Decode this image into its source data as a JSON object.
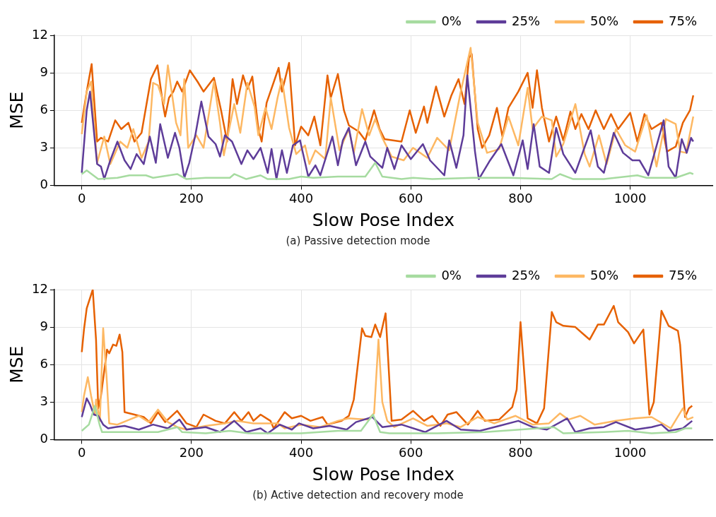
{
  "chart_data": [
    {
      "type": "line",
      "xlabel": "Slow Pose Index",
      "ylabel": "MSE",
      "annotations": [
        "(a) Passive detection mode"
      ],
      "xlim": [
        -50,
        1150
      ],
      "xticks": [
        0,
        200,
        400,
        600,
        800,
        1000
      ],
      "ylim": [
        0,
        12
      ],
      "yticks": [
        0,
        3,
        6,
        9,
        12
      ],
      "grid": true,
      "legend": "top right",
      "marker": "none",
      "line_style": "solid",
      "series": [
        {
          "name": "0%",
          "color": "#a6dba0",
          "x": [
            0,
            9,
            30,
            65,
            87,
            117,
            130,
            174,
            191,
            226,
            270,
            278,
            300,
            326,
            339,
            378,
            400,
            422,
            467,
            517,
            535,
            548,
            583,
            604,
            639,
            713,
            778,
            857,
            872,
            896,
            952,
            1013,
            1030,
            1083,
            1109,
            1115
          ],
          "values": [
            0.9,
            1.2,
            0.5,
            0.6,
            0.8,
            0.8,
            0.6,
            0.9,
            0.5,
            0.6,
            0.6,
            0.9,
            0.5,
            0.8,
            0.5,
            0.5,
            0.7,
            0.6,
            0.7,
            0.7,
            1.8,
            0.7,
            0.5,
            0.6,
            0.5,
            0.6,
            0.6,
            0.5,
            0.9,
            0.5,
            0.5,
            0.8,
            0.6,
            0.6,
            1.0,
            0.9
          ]
        },
        {
          "name": "25%",
          "color": "#5e3c99",
          "x": [
            0,
            9,
            15,
            28,
            35,
            41,
            52,
            65,
            78,
            89,
            100,
            113,
            124,
            135,
            143,
            157,
            170,
            178,
            187,
            196,
            207,
            218,
            231,
            244,
            252,
            261,
            274,
            291,
            302,
            313,
            326,
            339,
            346,
            355,
            365,
            374,
            385,
            398,
            413,
            426,
            435,
            457,
            467,
            476,
            487,
            500,
            517,
            526,
            548,
            557,
            570,
            583,
            600,
            622,
            635,
            661,
            670,
            683,
            696,
            703,
            717,
            724,
            743,
            765,
            787,
            804,
            813,
            824,
            835,
            852,
            865,
            878,
            900,
            928,
            941,
            952,
            970,
            987,
            1004,
            1017,
            1033,
            1061,
            1070,
            1083,
            1094,
            1103,
            1111,
            1115
          ],
          "values": [
            1.0,
            6.0,
            7.5,
            1.7,
            1.5,
            0.5,
            2.0,
            3.5,
            2.0,
            1.3,
            2.5,
            1.7,
            3.9,
            1.8,
            4.9,
            2.2,
            4.2,
            3.0,
            0.6,
            1.8,
            4.0,
            6.7,
            3.9,
            3.3,
            2.3,
            4.0,
            3.5,
            1.7,
            2.8,
            2.1,
            3.0,
            1.0,
            2.9,
            0.5,
            2.8,
            1.0,
            3.2,
            3.6,
            0.7,
            1.6,
            0.8,
            3.9,
            1.6,
            3.6,
            4.6,
            1.6,
            3.5,
            2.3,
            1.4,
            3.0,
            1.3,
            3.2,
            2.1,
            3.3,
            2.0,
            0.8,
            3.6,
            1.4,
            4.0,
            8.8,
            2.7,
            0.5,
            1.9,
            3.3,
            0.8,
            3.6,
            1.3,
            4.9,
            1.5,
            1.0,
            4.6,
            2.5,
            1.0,
            4.4,
            1.5,
            1.0,
            4.2,
            2.6,
            2.0,
            2.0,
            0.8,
            5.2,
            1.5,
            0.6,
            3.7,
            2.6,
            3.8,
            3.5
          ]
        },
        {
          "name": "50%",
          "color": "#fdb863",
          "x": [
            0,
            9,
            17,
            28,
            41,
            52,
            70,
            83,
            94,
            109,
            122,
            130,
            139,
            150,
            157,
            172,
            180,
            187,
            194,
            209,
            222,
            241,
            252,
            259,
            278,
            289,
            302,
            315,
            322,
            335,
            346,
            357,
            365,
            378,
            391,
            407,
            415,
            426,
            444,
            454,
            470,
            487,
            496,
            511,
            524,
            535,
            548,
            565,
            587,
            604,
            630,
            648,
            670,
            691,
            709,
            722,
            739,
            761,
            778,
            796,
            813,
            822,
            839,
            857,
            865,
            878,
            900,
            917,
            926,
            943,
            957,
            974,
            991,
            1009,
            1030,
            1048,
            1065,
            1083,
            1091,
            1102,
            1115
          ],
          "values": [
            4.1,
            7.5,
            8.3,
            1.8,
            3.9,
            1.7,
            3.5,
            3.0,
            4.5,
            2.2,
            3.5,
            8.2,
            8.0,
            6.5,
            9.6,
            5.0,
            4.0,
            8.5,
            3.0,
            4.0,
            3.0,
            8.3,
            5.0,
            2.4,
            6.5,
            4.2,
            8.2,
            6.3,
            4.0,
            6.2,
            4.5,
            7.0,
            8.5,
            4.6,
            2.5,
            3.2,
            1.7,
            2.8,
            2.1,
            7.0,
            2.8,
            4.5,
            2.6,
            6.1,
            4.0,
            5.3,
            3.8,
            2.3,
            2.0,
            3.0,
            2.2,
            3.8,
            2.8,
            7.5,
            11.0,
            5.0,
            2.6,
            2.9,
            5.5,
            3.2,
            7.8,
            4.5,
            5.5,
            5.2,
            2.3,
            3.3,
            6.5,
            2.5,
            1.5,
            4.0,
            1.7,
            4.5,
            3.2,
            2.7,
            5.6,
            1.5,
            5.3,
            4.9,
            2.7,
            2.6,
            5.5
          ]
        },
        {
          "name": "75%",
          "color": "#e66101",
          "x": [
            0,
            9,
            18,
            28,
            35,
            48,
            61,
            72,
            85,
            96,
            109,
            126,
            138,
            148,
            152,
            159,
            167,
            174,
            183,
            197,
            211,
            222,
            241,
            254,
            265,
            275,
            283,
            294,
            302,
            311,
            322,
            328,
            337,
            359,
            365,
            378,
            389,
            400,
            413,
            424,
            435,
            448,
            454,
            467,
            478,
            487,
            505,
            517,
            533,
            543,
            552,
            583,
            598,
            609,
            624,
            630,
            646,
            661,
            674,
            687,
            698,
            706,
            711,
            722,
            730,
            743,
            757,
            767,
            778,
            796,
            813,
            822,
            830,
            839,
            852,
            865,
            878,
            891,
            900,
            911,
            924,
            937,
            952,
            965,
            978,
            1000,
            1013,
            1026,
            1039,
            1057,
            1067,
            1083,
            1096,
            1109,
            1115
          ],
          "values": [
            5.0,
            7.5,
            9.7,
            3.5,
            3.8,
            3.5,
            5.2,
            4.5,
            5.0,
            3.5,
            4.2,
            8.5,
            9.6,
            6.5,
            5.5,
            7.0,
            7.5,
            8.3,
            7.5,
            9.2,
            8.3,
            7.5,
            8.6,
            6.0,
            3.5,
            8.5,
            6.5,
            8.8,
            7.7,
            8.7,
            4.5,
            3.5,
            6.6,
            9.4,
            7.5,
            9.8,
            3.2,
            4.7,
            4.0,
            5.5,
            3.2,
            8.8,
            7.0,
            8.9,
            6.0,
            4.8,
            4.3,
            3.6,
            6.0,
            4.5,
            3.7,
            3.5,
            6.0,
            4.2,
            6.3,
            5.0,
            7.9,
            5.5,
            7.2,
            8.5,
            6.5,
            10.2,
            10.5,
            4.5,
            3.0,
            4.0,
            6.2,
            3.9,
            6.2,
            7.5,
            9.0,
            6.2,
            9.2,
            6.2,
            3.5,
            5.5,
            3.6,
            5.9,
            4.5,
            5.7,
            4.5,
            6.0,
            4.5,
            5.7,
            4.5,
            5.8,
            3.5,
            5.7,
            4.5,
            5.0,
            2.7,
            3.1,
            5.0,
            6.0,
            7.2
          ]
        }
      ]
    },
    {
      "type": "line",
      "xlabel": "Slow Pose Index",
      "ylabel": "MSE",
      "annotations": [
        "(b) Active detection and recovery mode"
      ],
      "xlim": [
        -50,
        1150
      ],
      "xticks": [
        0,
        200,
        400,
        600,
        800,
        1000
      ],
      "ylim": [
        0,
        12
      ],
      "yticks": [
        0,
        3,
        6,
        9,
        12
      ],
      "grid": true,
      "legend": "top right",
      "marker": "none",
      "line_style": "solid",
      "series": [
        {
          "name": "0%",
          "color": "#a6dba0",
          "x": [
            0,
            13,
            24,
            33,
            37,
            74,
            139,
            174,
            183,
            226,
            270,
            304,
            348,
            400,
            467,
            509,
            531,
            544,
            561,
            648,
            735,
            861,
            878,
            952,
            996,
            1039,
            1083,
            1100,
            1113
          ],
          "values": [
            0.7,
            1.2,
            2.7,
            1.1,
            0.6,
            0.6,
            0.6,
            1.0,
            0.6,
            0.5,
            0.7,
            0.5,
            0.5,
            0.5,
            0.7,
            0.7,
            2.0,
            0.6,
            0.5,
            0.5,
            0.6,
            1.0,
            0.5,
            0.6,
            0.7,
            0.5,
            0.6,
            0.9,
            0.9
          ]
        },
        {
          "name": "25%",
          "color": "#5e3c99",
          "x": [
            0,
            9,
            15,
            22,
            30,
            39,
            48,
            61,
            78,
            104,
            130,
            157,
            178,
            191,
            226,
            252,
            278,
            300,
            326,
            339,
            361,
            383,
            396,
            422,
            452,
            483,
            500,
            530,
            548,
            583,
            626,
            665,
            691,
            726,
            761,
            796,
            822,
            848,
            885,
            900,
            926,
            952,
            974,
            1009,
            1039,
            1057,
            1070,
            1096,
            1113
          ],
          "values": [
            1.8,
            3.3,
            2.8,
            2.0,
            1.9,
            1.2,
            0.9,
            1.0,
            1.1,
            0.8,
            1.2,
            0.9,
            1.6,
            0.8,
            1.0,
            0.6,
            1.5,
            0.6,
            0.9,
            0.5,
            1.2,
            0.8,
            1.3,
            0.9,
            1.1,
            0.8,
            1.4,
            1.8,
            1.0,
            1.2,
            0.6,
            1.5,
            0.8,
            0.7,
            1.1,
            1.5,
            1.0,
            0.8,
            1.7,
            0.6,
            0.9,
            1.0,
            1.4,
            0.8,
            1.0,
            1.2,
            0.7,
            0.9,
            1.5
          ]
        },
        {
          "name": "50%",
          "color": "#fdb863",
          "x": [
            0,
            4,
            11,
            17,
            24,
            26,
            33,
            39,
            46,
            50,
            65,
            87,
            104,
            122,
            139,
            157,
            174,
            191,
            226,
            261,
            283,
            313,
            357,
            370,
            400,
            435,
            467,
            487,
            522,
            533,
            541,
            548,
            557,
            570,
            604,
            630,
            665,
            691,
            722,
            752,
            791,
            822,
            852,
            872,
            887,
            909,
            935,
            974,
            1009,
            1039,
            1074,
            1096,
            1104,
            1115
          ],
          "values": [
            2.2,
            3.5,
            5.0,
            3.5,
            2.0,
            3.2,
            1.5,
            8.9,
            4.5,
            1.3,
            1.2,
            1.6,
            1.9,
            1.4,
            2.4,
            1.4,
            1.0,
            0.8,
            1.1,
            1.3,
            1.5,
            1.3,
            1.3,
            0.9,
            1.2,
            1.0,
            1.5,
            1.7,
            1.6,
            2.1,
            8.0,
            3.0,
            1.5,
            1.0,
            1.7,
            1.1,
            1.3,
            1.0,
            1.8,
            1.3,
            1.9,
            1.2,
            1.3,
            2.1,
            1.6,
            1.9,
            1.2,
            1.5,
            1.7,
            1.8,
            0.9,
            2.5,
            1.6,
            1.8
          ]
        },
        {
          "name": "75%",
          "color": "#e66101",
          "x": [
            0,
            4,
            9,
            20,
            26,
            30,
            35,
            46,
            50,
            57,
            63,
            69,
            74,
            78,
            96,
            113,
            126,
            139,
            152,
            174,
            191,
            209,
            222,
            244,
            261,
            278,
            291,
            304,
            313,
            326,
            344,
            350,
            370,
            383,
            400,
            417,
            439,
            448,
            474,
            487,
            496,
            511,
            517,
            528,
            535,
            544,
            554,
            565,
            583,
            604,
            624,
            639,
            654,
            667,
            683,
            704,
            722,
            735,
            761,
            785,
            793,
            800,
            813,
            830,
            843,
            857,
            865,
            878,
            900,
            913,
            926,
            941,
            952,
            970,
            978,
            996,
            1007,
            1024,
            1035,
            1043,
            1057,
            1070,
            1087,
            1091,
            1100,
            1107,
            1113
          ],
          "values": [
            7.0,
            8.8,
            10.5,
            12.0,
            8.0,
            2.5,
            3.5,
            7.2,
            6.9,
            7.6,
            7.5,
            8.4,
            7.0,
            2.2,
            2.0,
            1.8,
            1.3,
            2.2,
            1.4,
            2.3,
            1.3,
            1.0,
            2.0,
            1.5,
            1.3,
            2.2,
            1.5,
            2.2,
            1.5,
            2.0,
            1.5,
            0.9,
            2.2,
            1.7,
            1.9,
            1.5,
            1.8,
            1.2,
            1.5,
            1.9,
            3.2,
            8.9,
            8.3,
            8.2,
            9.2,
            8.2,
            10.1,
            1.5,
            1.6,
            2.3,
            1.5,
            1.9,
            1.1,
            2.0,
            2.2,
            1.2,
            2.3,
            1.5,
            1.6,
            2.6,
            4.0,
            9.4,
            1.7,
            1.3,
            2.5,
            10.2,
            9.4,
            9.1,
            9.0,
            8.5,
            8.0,
            9.2,
            9.2,
            10.7,
            9.4,
            8.6,
            7.7,
            8.8,
            2.0,
            3.0,
            10.3,
            9.1,
            8.7,
            7.6,
            1.8,
            2.5,
            2.7
          ]
        }
      ]
    }
  ]
}
